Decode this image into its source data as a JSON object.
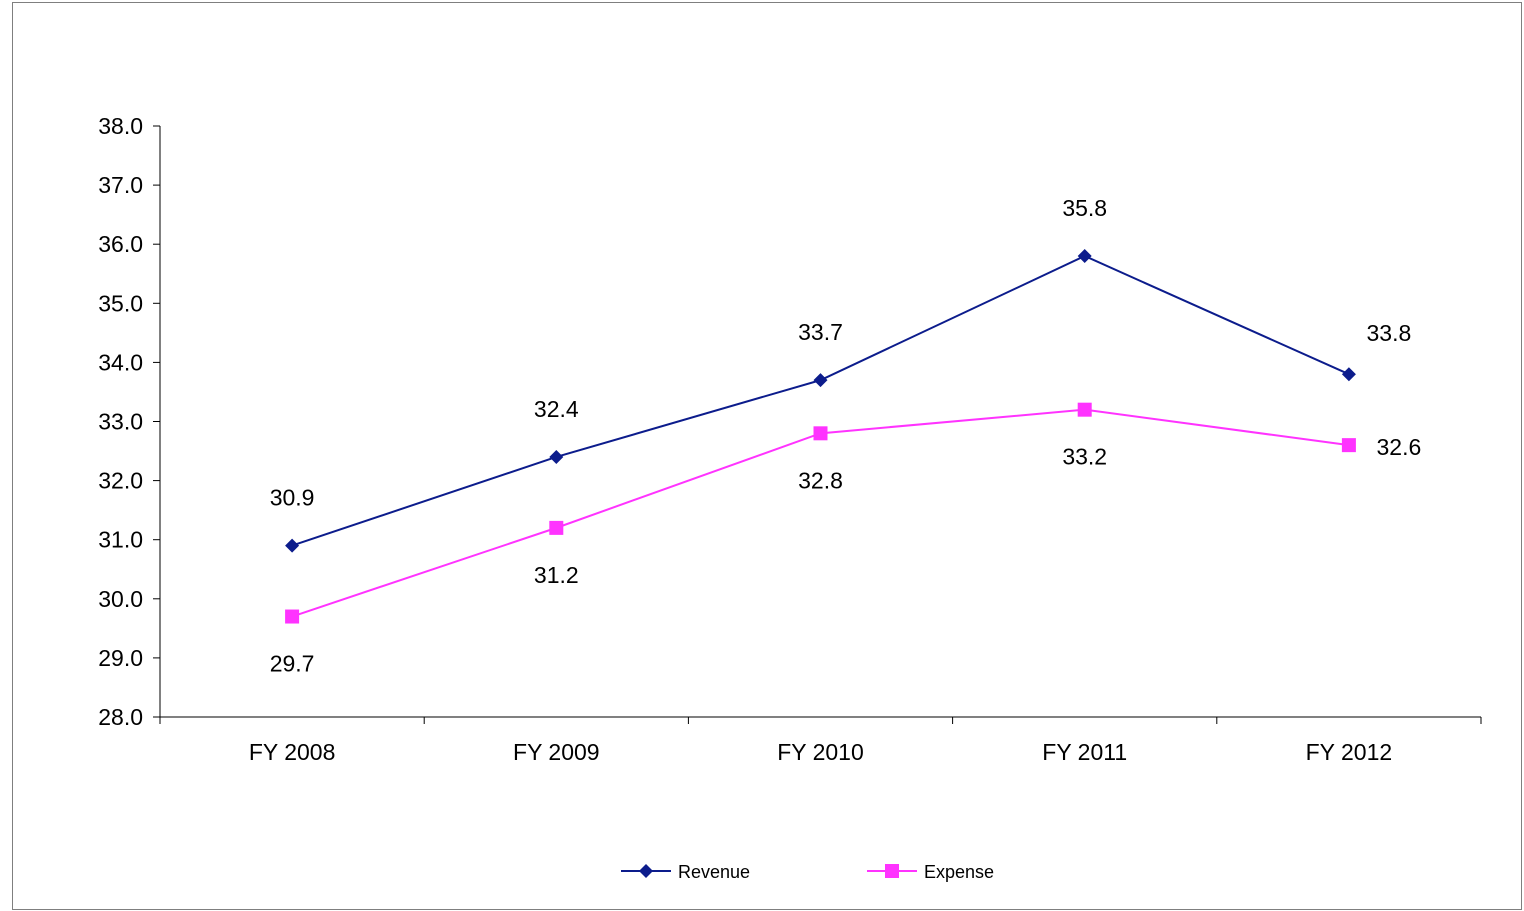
{
  "chart_data": {
    "type": "line",
    "categories": [
      "FY 2008",
      "FY 2009",
      "FY 2010",
      "FY 2011",
      "FY 2012"
    ],
    "series": [
      {
        "name": "Revenue",
        "values": [
          30.9,
          32.4,
          33.7,
          35.8,
          33.8
        ],
        "labels": [
          "30.9",
          "32.4",
          "33.7",
          "35.8",
          "33.8"
        ],
        "color": "#0c1c8c",
        "marker": "diamond",
        "label_position": "above"
      },
      {
        "name": "Expense",
        "values": [
          29.7,
          31.2,
          32.8,
          33.2,
          32.6
        ],
        "labels": [
          "29.7",
          "31.2",
          "32.8",
          "33.2",
          "32.6"
        ],
        "color": "#ff33ff",
        "marker": "square",
        "label_position": "below"
      }
    ],
    "ylim": [
      28.0,
      38.0
    ],
    "ytick_labels": [
      "28.0",
      "29.0",
      "30.0",
      "31.0",
      "32.0",
      "33.0",
      "34.0",
      "35.0",
      "36.0",
      "37.0",
      "38.0"
    ],
    "title": "",
    "xlabel": "",
    "ylabel": "",
    "grid": false,
    "legend_position": "bottom"
  }
}
